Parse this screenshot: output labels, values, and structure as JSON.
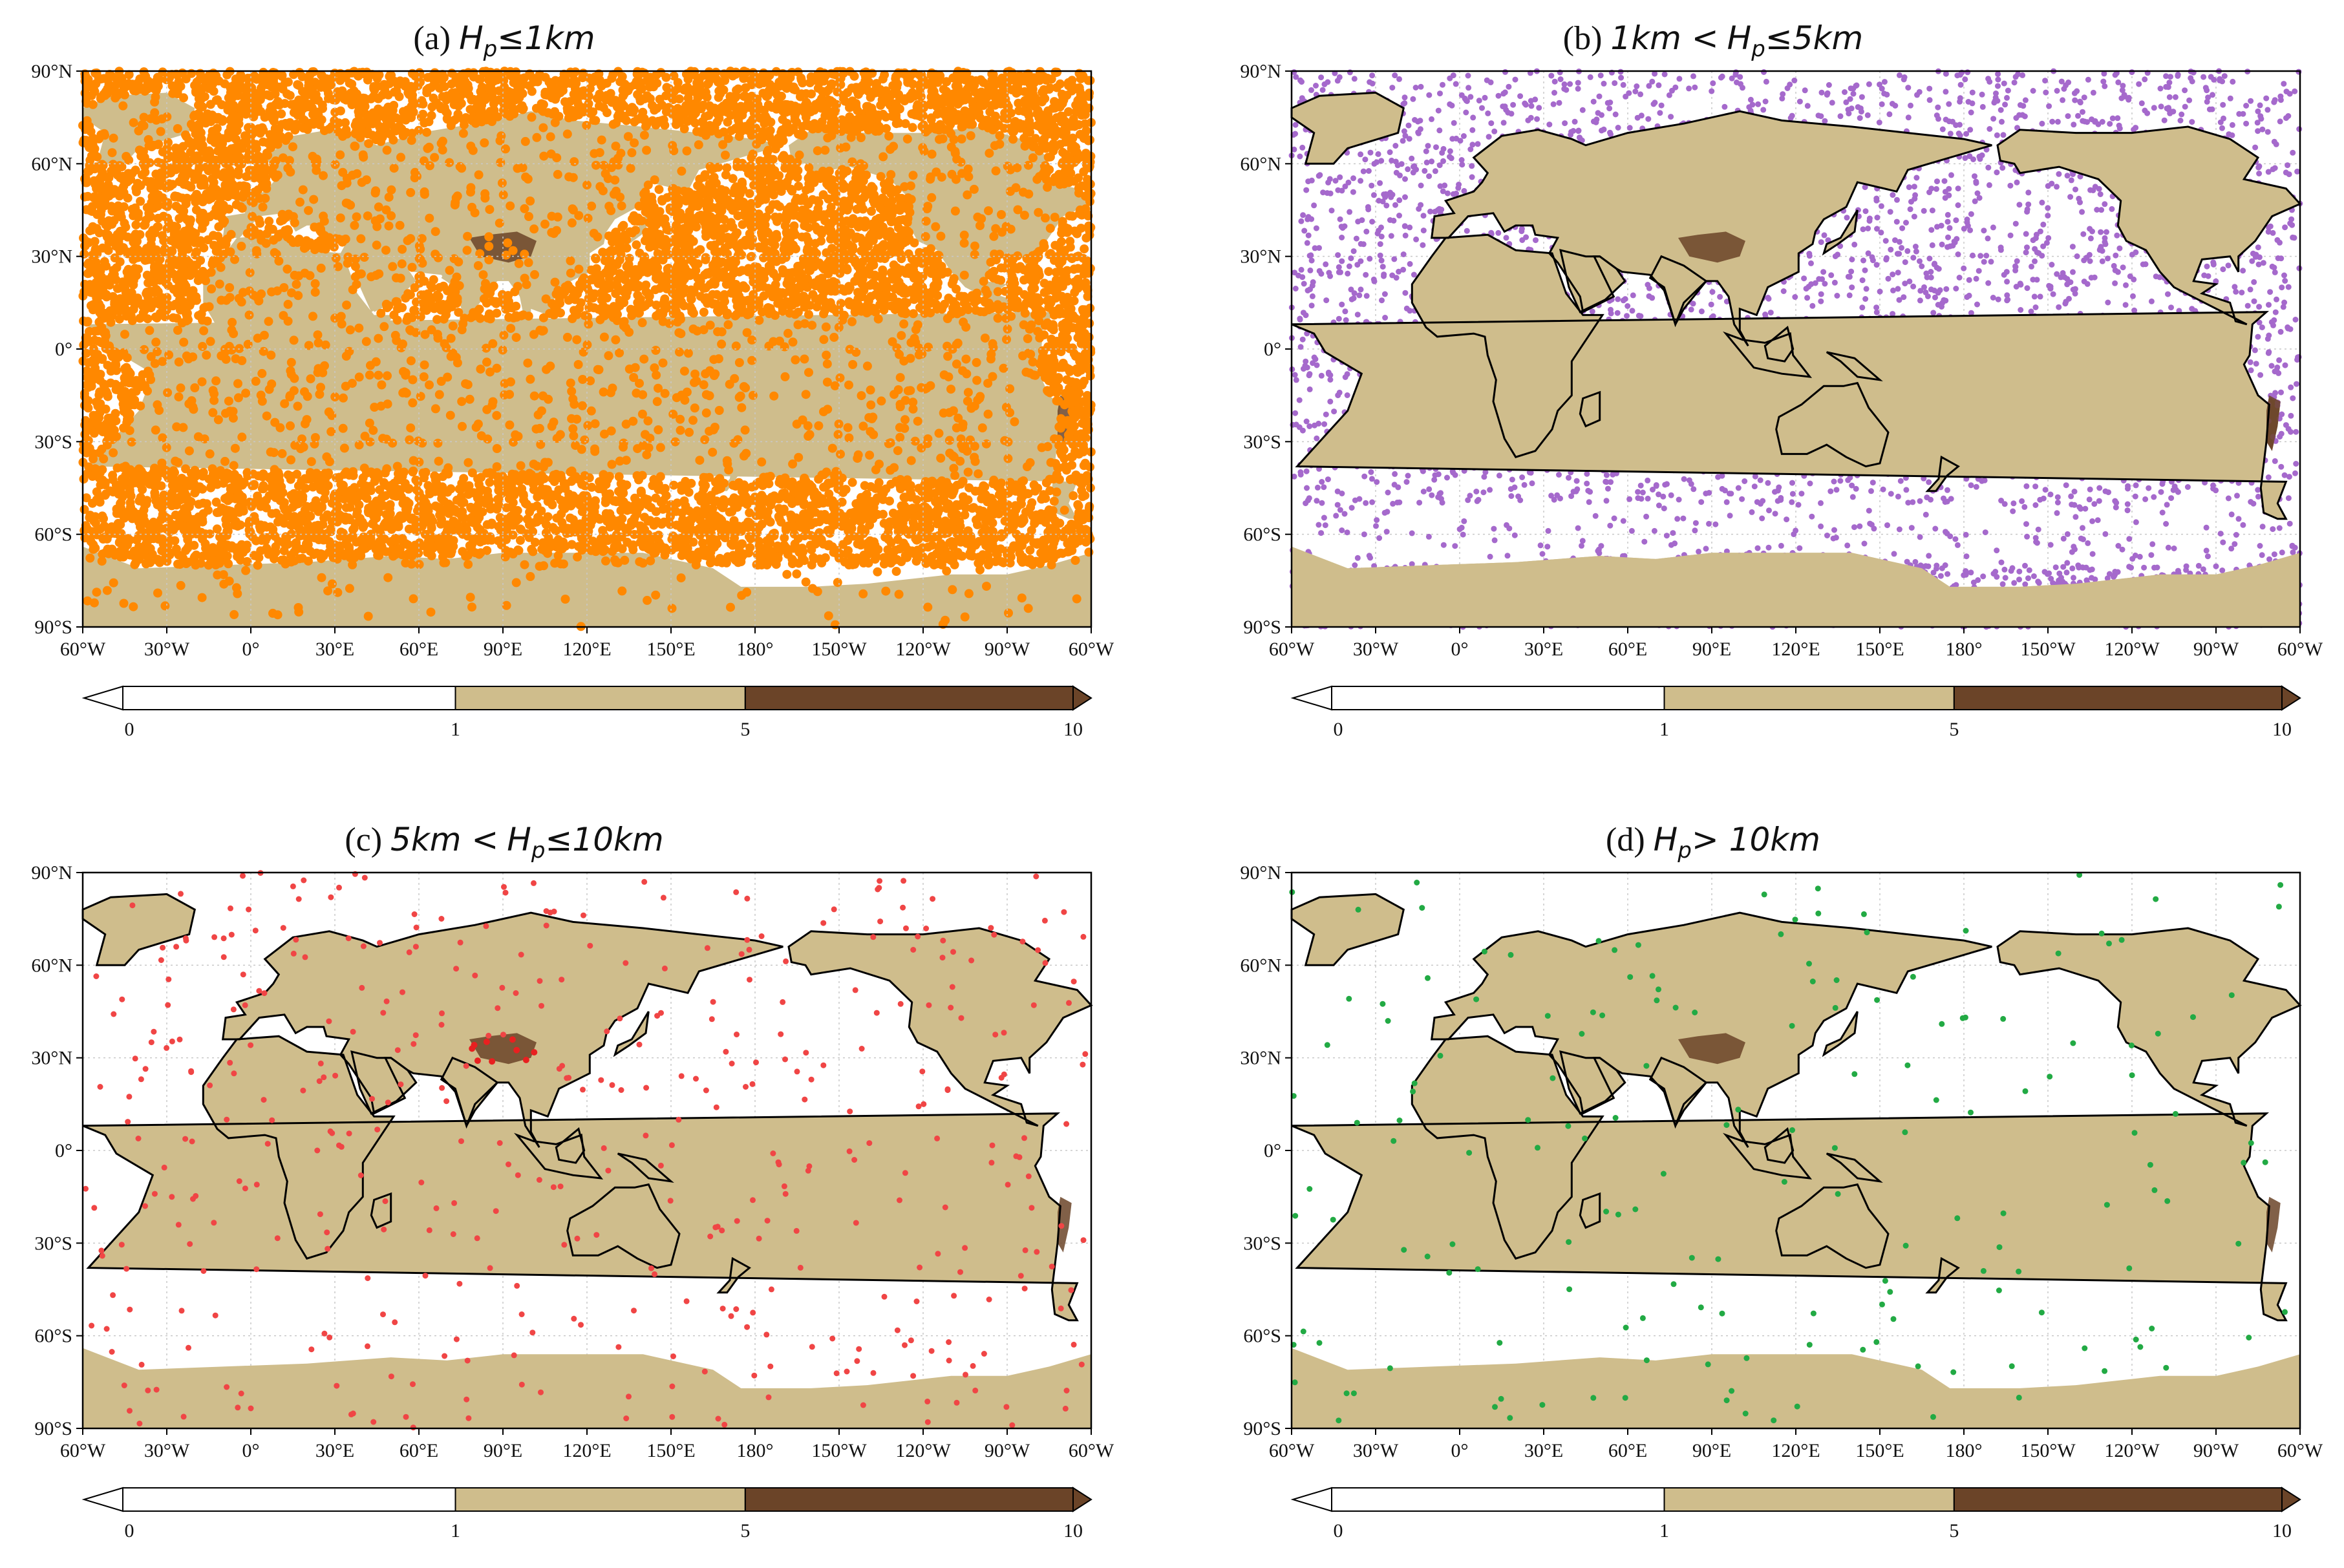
{
  "colorbar": {
    "ticks": [
      "0",
      "1",
      "5",
      "10"
    ],
    "colors": [
      "#ffffff",
      "#cfbd8c",
      "#6b4428"
    ]
  },
  "axes": {
    "lat_labels": [
      "90°N",
      "60°N",
      "30°N",
      "0°",
      "30°S",
      "60°S",
      "90°S"
    ],
    "lon_labels": [
      "60°W",
      "30°W",
      "0°",
      "30°E",
      "60°E",
      "90°E",
      "120°E",
      "150°E",
      "180°",
      "150°W",
      "120°W",
      "90°W",
      "60°W"
    ]
  },
  "land_color": "#cfbd8c",
  "high_color": "#6b4428",
  "panels": [
    {
      "id": "a",
      "prefix": "(a)",
      "lower": "",
      "hp": "H",
      "sub": "p",
      "relation": "≤1km",
      "point_color": "#ff8800",
      "density": "very-high"
    },
    {
      "id": "b",
      "prefix": "(b)",
      "lower": "1km <",
      "hp": "H",
      "sub": "p",
      "relation": "≤5km",
      "point_color": "#a569cc",
      "density": "high"
    },
    {
      "id": "c",
      "prefix": "(c)",
      "lower": "5km <",
      "hp": "H",
      "sub": "p",
      "relation": "≤10km",
      "point_color": "#f04545",
      "density": "low"
    },
    {
      "id": "d",
      "prefix": "(d)",
      "lower": "",
      "hp": "H",
      "sub": "p",
      "relation": "> 10km",
      "point_color": "#22aa44",
      "density": "very-low"
    }
  ]
}
